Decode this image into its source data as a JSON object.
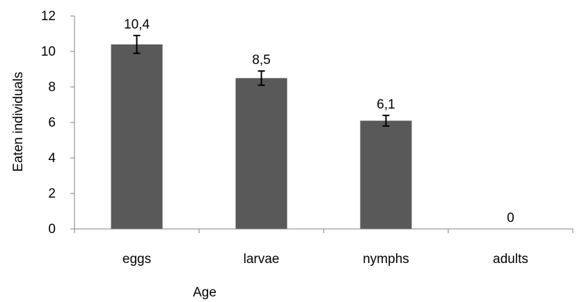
{
  "chart_data": {
    "type": "bar",
    "categories": [
      "eggs",
      "larvae",
      "nymphs",
      "adults"
    ],
    "values": [
      10.4,
      8.5,
      6.1,
      0
    ],
    "error": [
      0.5,
      0.4,
      0.3,
      0
    ],
    "data_labels": [
      "10,4",
      "8,5",
      "6,1",
      "0"
    ],
    "ylim": [
      0,
      12
    ],
    "yticks": [
      0,
      2,
      4,
      6,
      8,
      10,
      12
    ],
    "xlabel": "Age",
    "ylabel": "Eaten individuals",
    "grid": false,
    "legend": "none",
    "bar_color": "#595959",
    "axis_color": "#808080"
  }
}
